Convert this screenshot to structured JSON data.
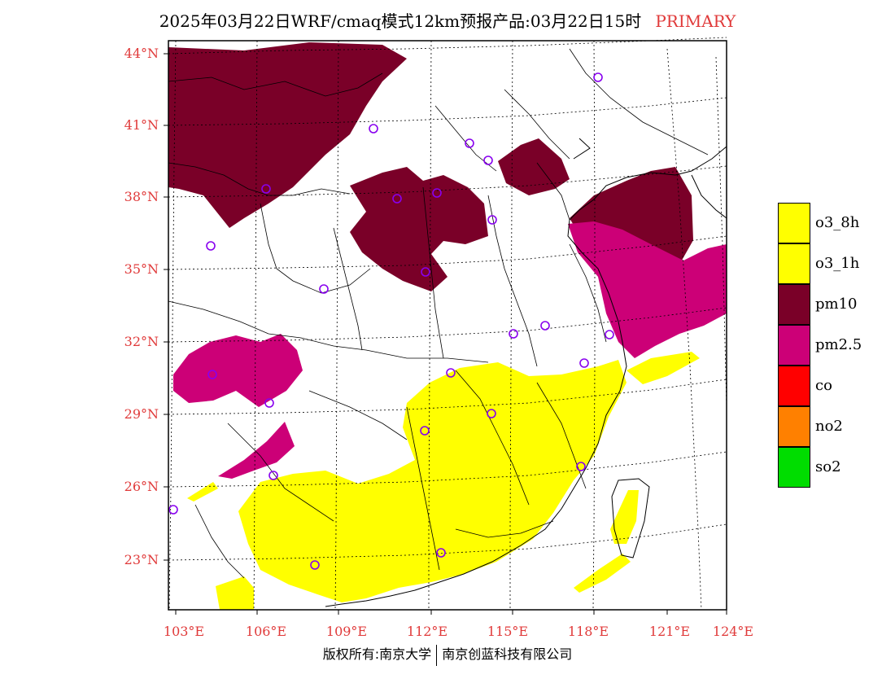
{
  "title": {
    "main": "2025年03月22日WRF/cmaq模式12km预报产品:03月22日15时",
    "tag": "PRIMARY"
  },
  "axes": {
    "lat_labels": [
      "44°N",
      "41°N",
      "38°N",
      "35°N",
      "32°N",
      "29°N",
      "26°N",
      "23°N"
    ],
    "lon_labels": [
      "103°E",
      "106°E",
      "109°E",
      "112°E",
      "115°E",
      "118°E",
      "121°E",
      "124°E"
    ]
  },
  "legend": {
    "items": [
      {
        "label": "o3_8h",
        "color": "#ffff00"
      },
      {
        "label": "o3_1h",
        "color": "#ffff00"
      },
      {
        "label": "pm10",
        "color": "#7a0028"
      },
      {
        "label": "pm2.5",
        "color": "#cc0077"
      },
      {
        "label": "co",
        "color": "#ff0000"
      },
      {
        "label": "no2",
        "color": "#ff8000"
      },
      {
        "label": "so2",
        "color": "#00dd00"
      }
    ]
  },
  "station_color": "#8800ee",
  "footer": {
    "left": "版权所有:南京大学",
    "right": "南京创蓝科技有限公司"
  }
}
